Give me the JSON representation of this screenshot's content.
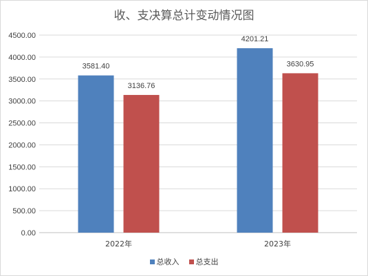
{
  "chart_data": {
    "type": "bar",
    "title": "收、支决算总计变动情况图",
    "categories": [
      "2022年",
      "2023年"
    ],
    "series": [
      {
        "name": "总收入",
        "color": "#4f81bd",
        "values": [
          3581.4,
          4201.21
        ],
        "labels": [
          "3581.40",
          "4201.21"
        ]
      },
      {
        "name": "总支出",
        "color": "#c0504d",
        "values": [
          3136.76,
          3630.95
        ],
        "labels": [
          "3136.76",
          "3630.95"
        ]
      }
    ],
    "ylim": [
      0,
      4500
    ],
    "ytick_step": 500,
    "yticks": [
      "0.00",
      "500.00",
      "1000.00",
      "1500.00",
      "2000.00",
      "2500.00",
      "3000.00",
      "3500.00",
      "4000.00",
      "4500.00"
    ],
    "grid": true,
    "legend": "bottom"
  }
}
